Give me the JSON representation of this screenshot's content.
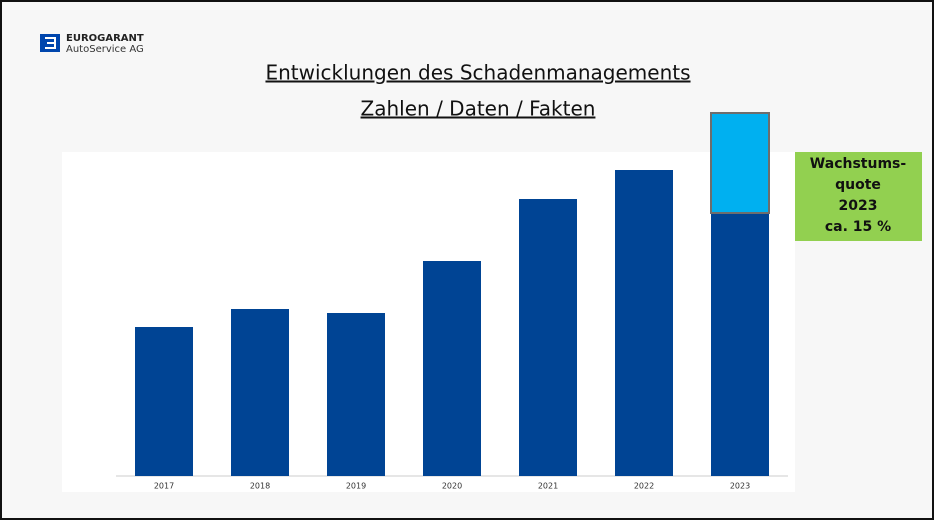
{
  "logo": {
    "name": "EUROGARANT",
    "subtitle": "AutoService AG"
  },
  "chart_data": {
    "type": "bar",
    "title": [
      "Entwicklungen des Schadenmanagements",
      "Zahlen / Daten / Fakten"
    ],
    "categories": [
      "2017",
      "2018",
      "2019",
      "2020",
      "2021",
      "2022",
      "2023"
    ],
    "series": [
      {
        "color": "#004494",
        "values": [
          149,
          167,
          163,
          215,
          277,
          306,
          263
        ]
      },
      {
        "color": "#00b0f0",
        "values": [
          null,
          null,
          null,
          null,
          null,
          null,
          100
        ]
      }
    ],
    "ylim": [
      0,
      363
    ],
    "annotation": [
      "Wachstums-",
      "quote",
      "2023",
      "ca. 15 %"
    ],
    "annotation_color": "#92d050"
  }
}
